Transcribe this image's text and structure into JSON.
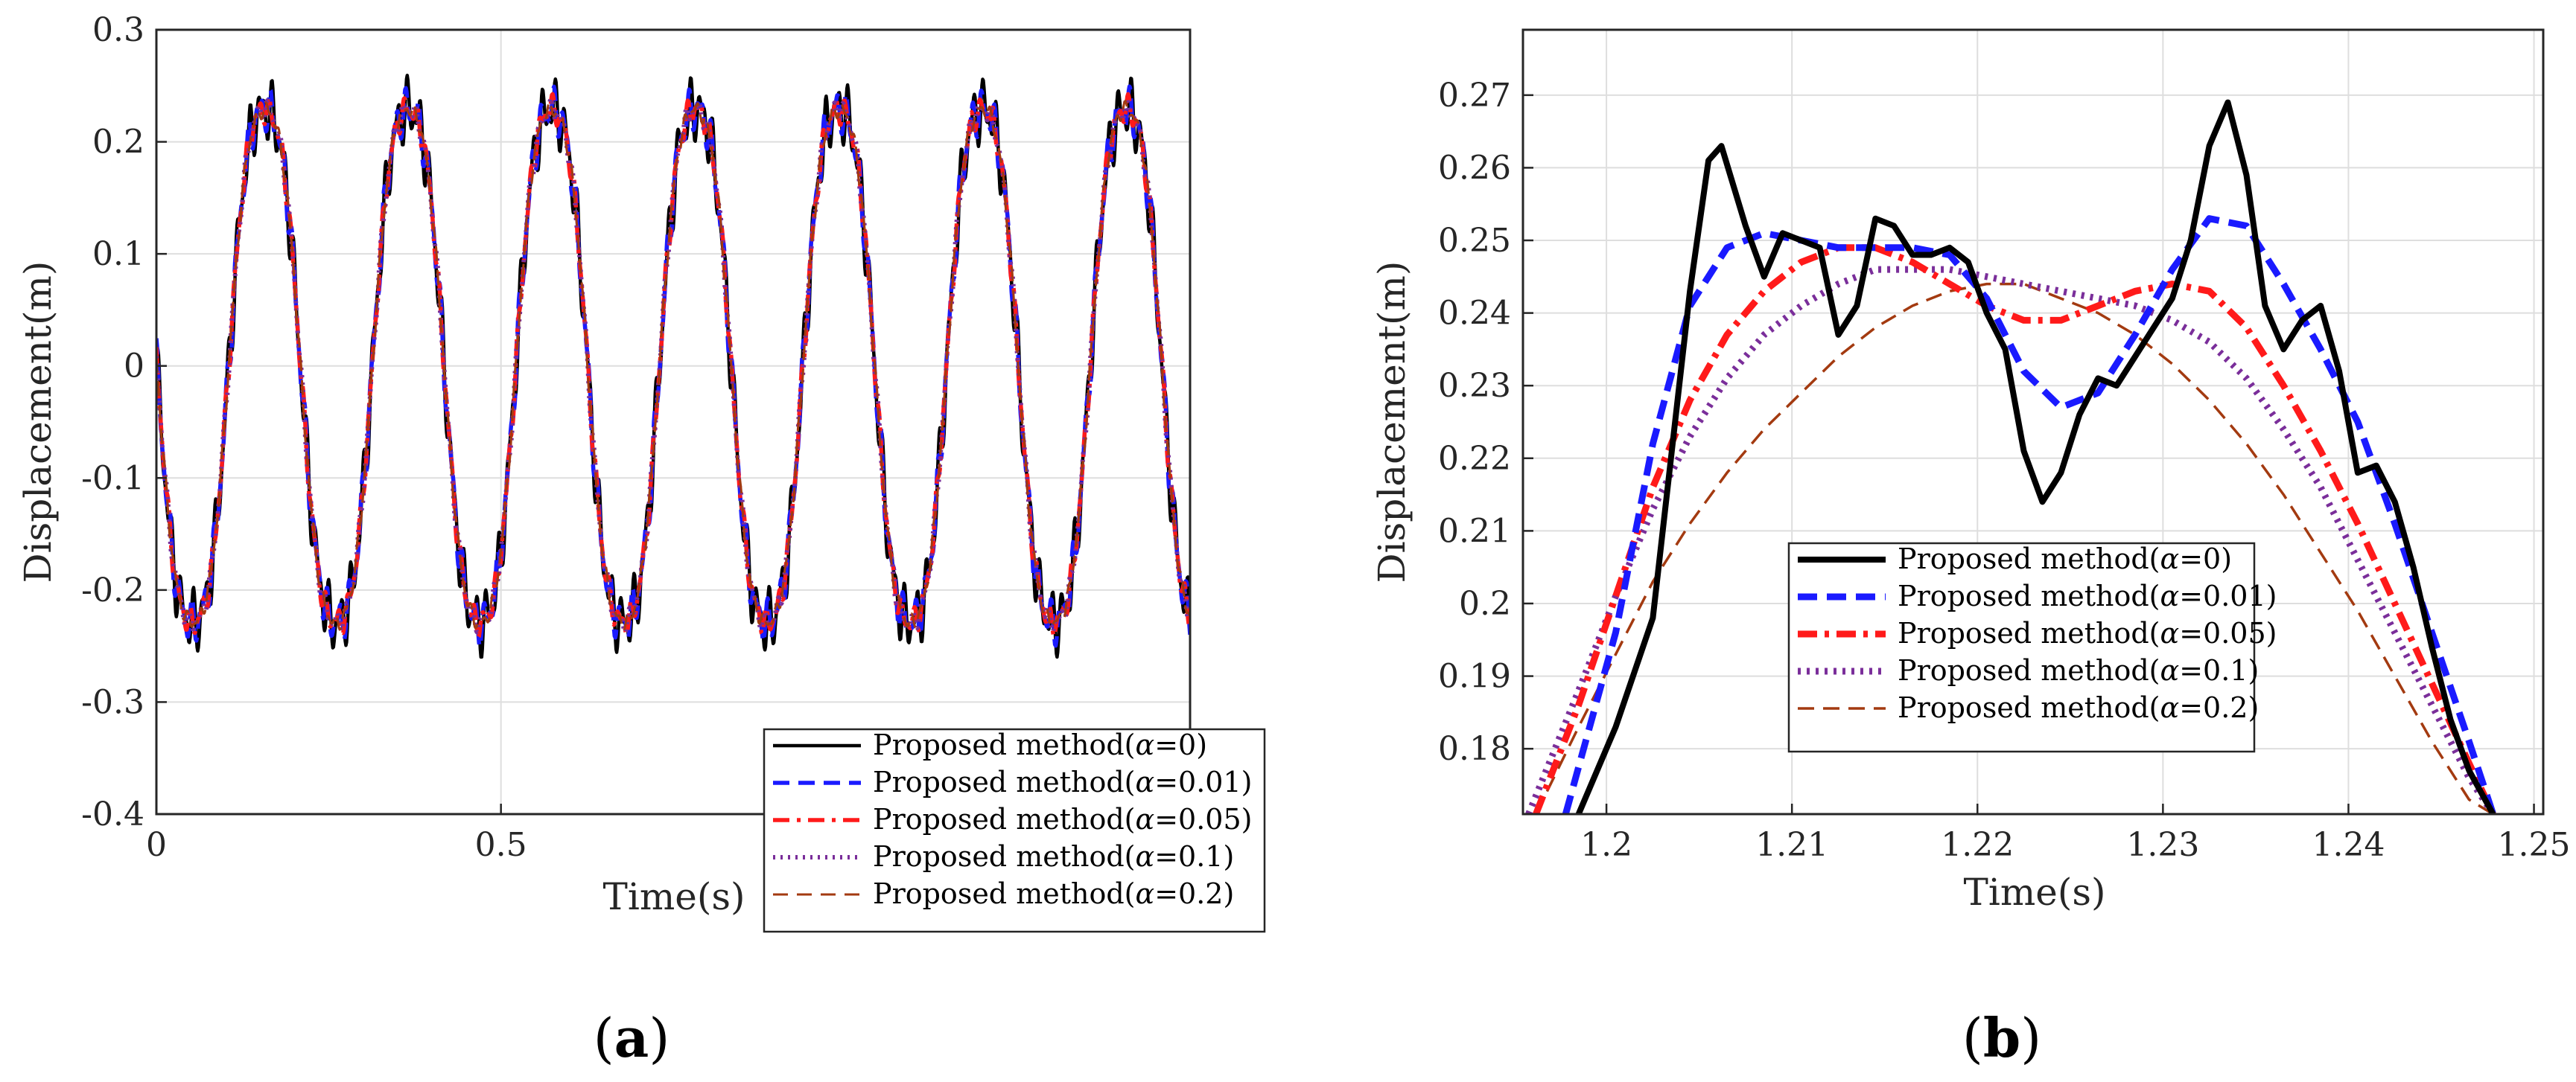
{
  "figure": {
    "caption_a": {
      "open": "(",
      "letter": "a",
      "close": ")"
    },
    "caption_b": {
      "open": "(",
      "letter": "b",
      "close": ")"
    }
  },
  "legend_entries": [
    {
      "prefix": "Proposed method(",
      "symbol": "α",
      "value": "=0)",
      "color": "#000000",
      "style": "solid"
    },
    {
      "prefix": "Proposed method(",
      "symbol": "α",
      "value": "=0.01)",
      "color": "#1a1aff",
      "style": "dashed"
    },
    {
      "prefix": "Proposed method(",
      "symbol": "α",
      "value": "=0.05)",
      "color": "#ff1a1a",
      "style": "dashdot"
    },
    {
      "prefix": "Proposed method(",
      "symbol": "α",
      "value": "=0.1)",
      "color": "#7a2e9a",
      "style": "dotted"
    },
    {
      "prefix": "Proposed method(",
      "symbol": "α",
      "value": "=0.2)",
      "color": "#a33a10",
      "style": "dashed-thin"
    }
  ],
  "chart_data": [
    {
      "id": "a",
      "type": "line",
      "title": "",
      "xlabel": "Time(s)",
      "ylabel": "Displacement(m)",
      "xlim": [
        0,
        1.5
      ],
      "ylim": [
        -0.4,
        0.3
      ],
      "xticks": [
        0,
        0.5
      ],
      "xtick_labels": [
        "0",
        "0.5"
      ],
      "yticks": [
        -0.4,
        -0.3,
        -0.2,
        -0.1,
        0,
        0.1,
        0.2,
        0.3
      ],
      "ytick_labels": [
        "-0.4",
        "-0.3",
        "-0.2",
        "-0.1",
        "0",
        "0.1",
        "0.2",
        "0.3"
      ],
      "grid": true,
      "legend": "bottom-right",
      "signal": {
        "amplitude": 0.245,
        "frequency_hz": 4.8,
        "phase_note": "sin(2πf(t-0.105)) + high-frequency ripple"
      },
      "series": [
        {
          "name": "α=0",
          "noise": 0.032
        },
        {
          "name": "α=0.01",
          "noise": 0.022
        },
        {
          "name": "α=0.05",
          "noise": 0.014
        },
        {
          "name": "α=0.1",
          "noise": 0.01
        },
        {
          "name": "α=0.2",
          "noise": 0.008
        }
      ]
    },
    {
      "id": "b",
      "type": "line",
      "title": "",
      "xlabel": "Time(s)",
      "ylabel": "Displacement(m)",
      "xlim": [
        1.1955,
        1.2505
      ],
      "ylim": [
        0.171,
        0.279
      ],
      "xticks": [
        1.2,
        1.21,
        1.22,
        1.23,
        1.24,
        1.25
      ],
      "xtick_labels": [
        "1.2",
        "1.21",
        "1.22",
        "1.23",
        "1.24",
        "1.25"
      ],
      "yticks": [
        0.18,
        0.19,
        0.2,
        0.21,
        0.22,
        0.23,
        0.24,
        0.25,
        0.26,
        0.27
      ],
      "ytick_labels": [
        "0.18",
        "0.19",
        "0.2",
        "0.21",
        "0.22",
        "0.23",
        "0.24",
        "0.25",
        "0.26",
        "0.27"
      ],
      "grid": true,
      "legend": "center",
      "series": [
        {
          "name": "α=0",
          "x": [
            1.1985,
            1.2005,
            1.2025,
            1.2045,
            1.2055,
            1.2062,
            1.2075,
            1.2085,
            1.2095,
            1.2115,
            1.2125,
            1.2135,
            1.2145,
            1.2155,
            1.2165,
            1.2175,
            1.2185,
            1.2195,
            1.2205,
            1.2215,
            1.2225,
            1.2235,
            1.2245,
            1.2255,
            1.2265,
            1.2275,
            1.2285,
            1.2295,
            1.2305,
            1.2315,
            1.2325,
            1.2335,
            1.2345,
            1.2355,
            1.2365,
            1.2375,
            1.2385,
            1.2395,
            1.2405,
            1.2415,
            1.2425,
            1.2435,
            1.2445,
            1.2455,
            1.2465,
            1.2478
          ],
          "y": [
            0.171,
            0.183,
            0.198,
            0.243,
            0.261,
            0.263,
            0.252,
            0.245,
            0.251,
            0.249,
            0.237,
            0.241,
            0.253,
            0.252,
            0.248,
            0.248,
            0.249,
            0.247,
            0.24,
            0.235,
            0.221,
            0.214,
            0.218,
            0.226,
            0.231,
            0.23,
            0.234,
            0.238,
            0.242,
            0.25,
            0.263,
            0.269,
            0.259,
            0.241,
            0.235,
            0.239,
            0.241,
            0.232,
            0.218,
            0.219,
            0.214,
            0.205,
            0.194,
            0.184,
            0.177,
            0.171
          ]
        },
        {
          "name": "α=0.01",
          "x": [
            1.1978,
            1.2005,
            1.2025,
            1.2045,
            1.2065,
            1.2085,
            1.2105,
            1.2125,
            1.2145,
            1.2165,
            1.2185,
            1.2205,
            1.2225,
            1.2245,
            1.2265,
            1.2285,
            1.2305,
            1.2325,
            1.2345,
            1.2365,
            1.2385,
            1.2405,
            1.2425,
            1.2445,
            1.2465,
            1.2478
          ],
          "y": [
            0.171,
            0.196,
            0.222,
            0.241,
            0.249,
            0.251,
            0.25,
            0.249,
            0.249,
            0.249,
            0.248,
            0.242,
            0.232,
            0.227,
            0.229,
            0.237,
            0.246,
            0.253,
            0.252,
            0.244,
            0.235,
            0.225,
            0.211,
            0.196,
            0.181,
            0.171
          ]
        },
        {
          "name": "α=0.05",
          "x": [
            1.1962,
            1.1985,
            1.2005,
            1.2025,
            1.2045,
            1.2065,
            1.2085,
            1.2105,
            1.2125,
            1.2145,
            1.2165,
            1.2185,
            1.2205,
            1.2225,
            1.2245,
            1.2265,
            1.2285,
            1.2305,
            1.2325,
            1.2345,
            1.2365,
            1.2385,
            1.2405,
            1.2425,
            1.2445,
            1.2465,
            1.2478
          ],
          "y": [
            0.171,
            0.186,
            0.201,
            0.216,
            0.228,
            0.237,
            0.243,
            0.247,
            0.249,
            0.249,
            0.247,
            0.244,
            0.241,
            0.239,
            0.239,
            0.241,
            0.243,
            0.244,
            0.243,
            0.238,
            0.23,
            0.221,
            0.211,
            0.2,
            0.189,
            0.178,
            0.171
          ]
        },
        {
          "name": "α=0.1",
          "x": [
            1.1958,
            1.1985,
            1.2005,
            1.2025,
            1.2045,
            1.2065,
            1.2085,
            1.2105,
            1.2125,
            1.2145,
            1.2165,
            1.2185,
            1.2205,
            1.2225,
            1.2245,
            1.2265,
            1.2285,
            1.2305,
            1.2325,
            1.2345,
            1.2365,
            1.2385,
            1.2405,
            1.2425,
            1.2445,
            1.2465,
            1.2478
          ],
          "y": [
            0.171,
            0.188,
            0.201,
            0.213,
            0.223,
            0.231,
            0.237,
            0.241,
            0.244,
            0.246,
            0.246,
            0.246,
            0.245,
            0.244,
            0.243,
            0.242,
            0.241,
            0.239,
            0.236,
            0.231,
            0.224,
            0.216,
            0.206,
            0.196,
            0.186,
            0.176,
            0.171
          ]
        },
        {
          "name": "α=0.2",
          "x": [
            1.1962,
            1.1985,
            1.2005,
            1.2025,
            1.2045,
            1.2065,
            1.2085,
            1.2105,
            1.2125,
            1.2145,
            1.2165,
            1.2185,
            1.2205,
            1.2225,
            1.2245,
            1.2265,
            1.2285,
            1.2305,
            1.2325,
            1.2345,
            1.2365,
            1.2385,
            1.2405,
            1.2425,
            1.2445,
            1.2465,
            1.2478
          ],
          "y": [
            0.171,
            0.183,
            0.193,
            0.203,
            0.211,
            0.218,
            0.224,
            0.229,
            0.234,
            0.238,
            0.241,
            0.243,
            0.244,
            0.244,
            0.242,
            0.24,
            0.237,
            0.233,
            0.228,
            0.222,
            0.215,
            0.207,
            0.199,
            0.19,
            0.181,
            0.173,
            0.171
          ]
        }
      ]
    }
  ]
}
